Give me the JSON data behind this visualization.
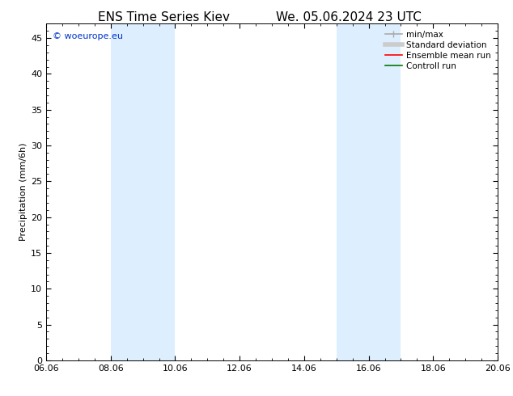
{
  "title_left": "ENS Time Series Kiev",
  "title_right": "We. 05.06.2024 23 UTC",
  "ylabel": "Precipitation (mm/6h)",
  "xlabel_ticks": [
    "06.06",
    "08.06",
    "10.06",
    "12.06",
    "14.06",
    "16.06",
    "18.06",
    "20.06"
  ],
  "xtick_positions": [
    0,
    2,
    4,
    6,
    8,
    10,
    12,
    14
  ],
  "xlim": [
    0,
    14
  ],
  "ylim": [
    0,
    47
  ],
  "yticks": [
    0,
    5,
    10,
    15,
    20,
    25,
    30,
    35,
    40,
    45
  ],
  "shaded_bands": [
    {
      "x_start": 2.0,
      "x_end": 4.0
    },
    {
      "x_start": 9.0,
      "x_end": 11.0
    }
  ],
  "band_color": "#ddeeff",
  "watermark_text": "© woeurope.eu",
  "watermark_color": "#0033cc",
  "legend_entries": [
    {
      "label": "min/max",
      "color": "#aaaaaa",
      "lw": 1.2
    },
    {
      "label": "Standard deviation",
      "color": "#cccccc",
      "lw": 4
    },
    {
      "label": "Ensemble mean run",
      "color": "#ff0000",
      "lw": 1.2
    },
    {
      "label": "Controll run",
      "color": "#007700",
      "lw": 1.2
    }
  ],
  "background_color": "#ffffff",
  "title_fontsize": 11,
  "tick_fontsize": 8,
  "ylabel_fontsize": 8,
  "legend_fontsize": 7.5
}
